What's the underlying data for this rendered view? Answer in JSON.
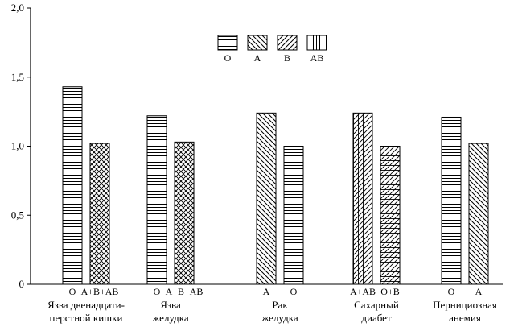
{
  "chart_data": {
    "type": "bar",
    "ylim": [
      0,
      2.0
    ],
    "y_ticks": [
      {
        "value": 0,
        "label": "0"
      },
      {
        "value": 0.5,
        "label": "0,5"
      },
      {
        "value": 1.0,
        "label": "1,0"
      },
      {
        "value": 1.5,
        "label": "1,5"
      },
      {
        "value": 2.0,
        "label": "2,0"
      }
    ],
    "grid": false,
    "legend_placement": "top-center",
    "legend": [
      {
        "key": "O",
        "label": "O",
        "pattern": "horizontal"
      },
      {
        "key": "A",
        "label": "A",
        "pattern": "diag-back"
      },
      {
        "key": "B",
        "label": "B",
        "pattern": "diag-forward"
      },
      {
        "key": "AB",
        "label": "AB",
        "pattern": "vertical"
      }
    ],
    "groups": [
      {
        "label_lines": [
          "Язва двенадцати-",
          "перстной кишки"
        ],
        "bars": [
          {
            "label": "O",
            "value": 1.43,
            "pattern": "horizontal"
          },
          {
            "label": "A+B+AB",
            "value": 1.02,
            "pattern": "crosshatch"
          }
        ]
      },
      {
        "label_lines": [
          "Язва",
          "желудка"
        ],
        "bars": [
          {
            "label": "O",
            "value": 1.22,
            "pattern": "horizontal"
          },
          {
            "label": "A+B+AB",
            "value": 1.03,
            "pattern": "crosshatch"
          }
        ]
      },
      {
        "label_lines": [
          "Рак",
          "желудка"
        ],
        "bars": [
          {
            "label": "A",
            "value": 1.24,
            "pattern": "diag-back"
          },
          {
            "label": "O",
            "value": 1.0,
            "pattern": "horizontal"
          }
        ]
      },
      {
        "label_lines": [
          "Сахарный",
          "диабет"
        ],
        "bars": [
          {
            "label": "A+AB",
            "value": 1.24,
            "pattern": "grid-diag"
          },
          {
            "label": "O+B",
            "value": 1.0,
            "pattern": "horiz-diag"
          }
        ]
      },
      {
        "label_lines": [
          "Пернициозная",
          "анемия"
        ],
        "bars": [
          {
            "label": "O",
            "value": 1.21,
            "pattern": "horizontal"
          },
          {
            "label": "A",
            "value": 1.02,
            "pattern": "diag-back"
          }
        ]
      }
    ]
  }
}
